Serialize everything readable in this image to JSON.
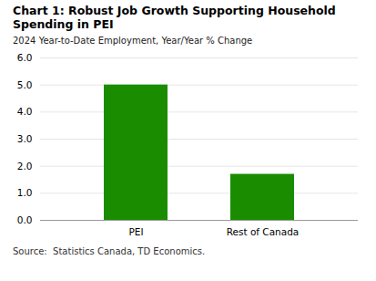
{
  "chart_data": {
    "type": "bar",
    "title": "Chart 1: Robust Job Growth Supporting Household Spending in PEI",
    "subtitle": "2024 Year-to-Date Employment, Year/Year % Change",
    "categories": [
      "PEI",
      "Rest of Canada"
    ],
    "values": [
      5.0,
      1.7
    ],
    "color": "#1a8c00",
    "ylim": [
      0,
      6
    ],
    "yticks": [
      0,
      1,
      2,
      3,
      4,
      5,
      6
    ],
    "grid": true,
    "annotations": [
      "Source:  Statistics Canada, TD Economics."
    ]
  }
}
